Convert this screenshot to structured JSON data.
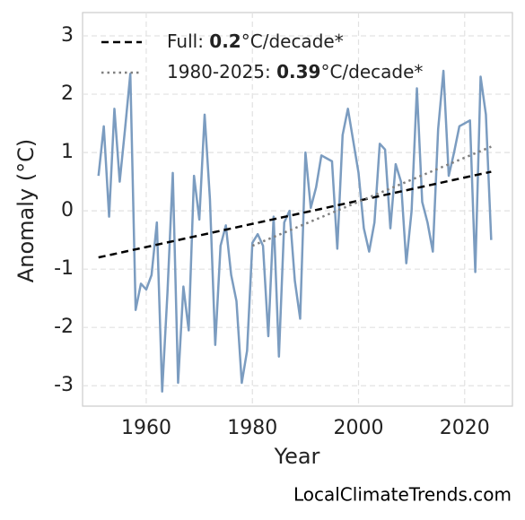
{
  "chart_data": {
    "type": "line",
    "xlabel": "Year",
    "ylabel": "Anomaly (°C)",
    "footer": "LocalClimateTrends.com",
    "x": [
      1951,
      1952,
      1953,
      1954,
      1955,
      1956,
      1957,
      1958,
      1959,
      1960,
      1961,
      1962,
      1963,
      1964,
      1965,
      1966,
      1967,
      1968,
      1969,
      1970,
      1971,
      1972,
      1973,
      1974,
      1975,
      1976,
      1977,
      1978,
      1979,
      1980,
      1981,
      1982,
      1983,
      1984,
      1985,
      1986,
      1987,
      1988,
      1989,
      1990,
      1991,
      1992,
      1993,
      1994,
      1995,
      1996,
      1997,
      1998,
      1999,
      2000,
      2001,
      2002,
      2003,
      2004,
      2005,
      2006,
      2007,
      2008,
      2009,
      2010,
      2011,
      2012,
      2013,
      2014,
      2015,
      2016,
      2017,
      2018,
      2019,
      2020,
      2021,
      2022,
      2023,
      2024,
      2025
    ],
    "series": [
      {
        "color": "#7b9cc0",
        "values": [
          0.6,
          1.45,
          -0.1,
          1.75,
          0.5,
          1.4,
          2.35,
          -1.7,
          -1.25,
          -1.35,
          -1.1,
          -0.2,
          -3.1,
          -1.4,
          0.65,
          -2.95,
          -1.3,
          -2.05,
          0.6,
          -0.15,
          1.65,
          0.2,
          -2.3,
          -0.6,
          -0.25,
          -1.1,
          -1.55,
          -2.95,
          -2.4,
          -0.55,
          -0.4,
          -0.6,
          -2.15,
          -0.1,
          -2.5,
          -0.2,
          0.0,
          -1.2,
          -1.85,
          1.0,
          0.05,
          0.4,
          0.95,
          0.9,
          0.85,
          -0.65,
          1.3,
          1.75,
          1.2,
          0.65,
          -0.3,
          -0.7,
          -0.2,
          1.15,
          1.05,
          -0.3,
          0.8,
          0.5,
          -0.9,
          0.0,
          2.1,
          0.15,
          -0.2,
          -0.7,
          1.4,
          2.4,
          0.6,
          1.0,
          1.45,
          1.5,
          1.55,
          -1.05,
          2.3,
          1.65,
          -0.5
        ]
      }
    ],
    "trend_lines": [
      {
        "x": [
          1951,
          2025
        ],
        "values": [
          -0.8,
          0.67
        ],
        "color": "#000000",
        "dash": "dashed",
        "label": {
          "prefix": "Full: ",
          "bold": "0.2",
          "suffix": "°C/decade*"
        }
      },
      {
        "x": [
          1980,
          2025
        ],
        "values": [
          -0.6,
          1.1
        ],
        "color": "#808080",
        "dash": "dotted",
        "label": {
          "prefix": "1980-2025: ",
          "bold": "0.39",
          "suffix": "°C/decade*"
        }
      }
    ],
    "xlim": [
      1948,
      2029
    ],
    "ylim": [
      -3.35,
      3.4
    ],
    "xticks": [
      1960,
      1980,
      2000,
      2020
    ],
    "yticks": [
      -3,
      -2,
      -1,
      0,
      1,
      2,
      3
    ],
    "grid": true
  }
}
